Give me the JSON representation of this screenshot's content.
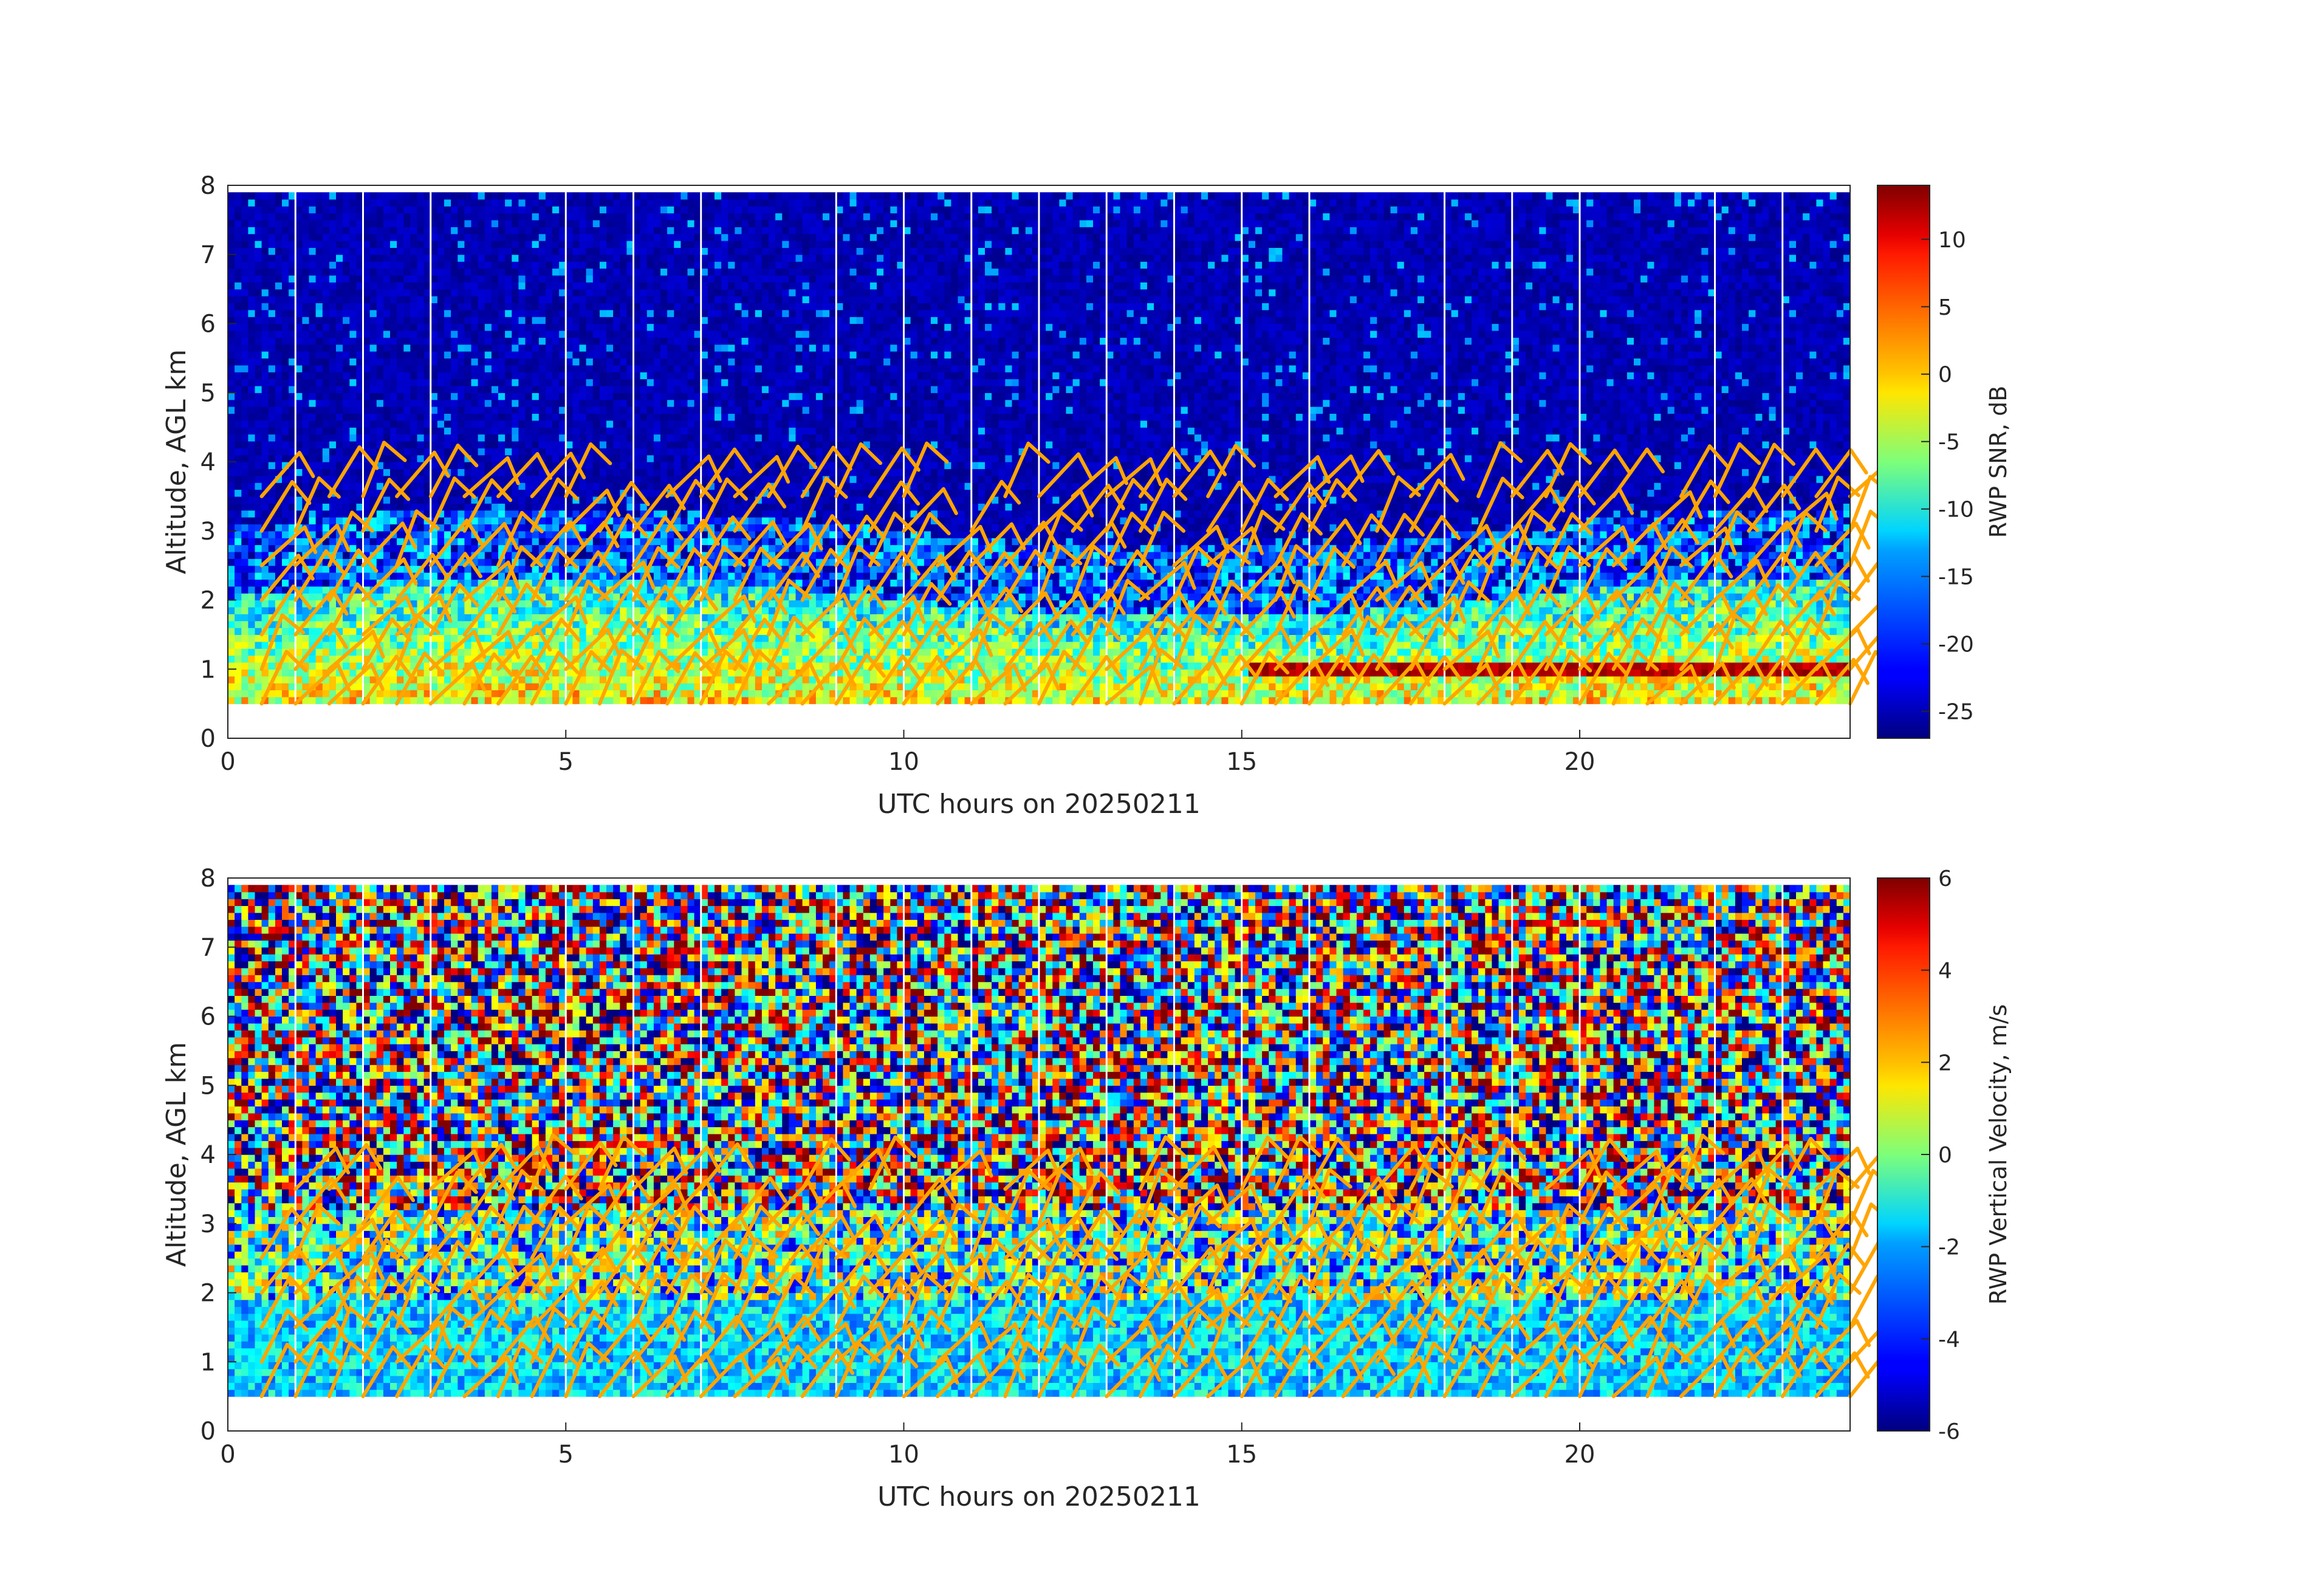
{
  "chart_data": [
    {
      "type": "heatmap",
      "xlabel": "UTC hours on 20250211",
      "ylabel": "Altitude, AGL km",
      "xlim": [
        0,
        24
      ],
      "ylim": [
        0,
        8
      ],
      "xticks": [
        0,
        5,
        10,
        15,
        20
      ],
      "yticks": [
        0,
        1,
        2,
        3,
        4,
        5,
        6,
        7,
        8
      ],
      "data_altitude_range_km": [
        0.5,
        7.9
      ],
      "gap_columns_utc_hours": [
        1,
        2,
        3,
        5,
        6,
        7,
        9,
        10,
        11,
        12,
        13,
        14,
        15,
        16,
        18,
        19,
        20,
        22,
        23
      ],
      "colorbar": {
        "label": "RWP SNR, dB",
        "range": [
          -27,
          14
        ],
        "ticks": [
          10,
          5,
          0,
          -5,
          -10,
          -15,
          -20,
          -25
        ],
        "colormap": "jet"
      },
      "wind_barbs": {
        "color": "#ffa500",
        "altitudes_km": [
          0.5,
          1.0,
          1.5,
          2.0,
          2.5,
          3.0,
          3.5
        ]
      }
    },
    {
      "type": "heatmap",
      "xlabel": "UTC hours on 20250211",
      "ylabel": "Altitude, AGL km",
      "xlim": [
        0,
        24
      ],
      "ylim": [
        0,
        8
      ],
      "xticks": [
        0,
        5,
        10,
        15,
        20
      ],
      "yticks": [
        0,
        1,
        2,
        3,
        4,
        5,
        6,
        7,
        8
      ],
      "data_altitude_range_km": [
        0.5,
        7.9
      ],
      "gap_columns_utc_hours": [
        1,
        2,
        3,
        5,
        6,
        7,
        9,
        10,
        11,
        12,
        13,
        14,
        15,
        16,
        18,
        19,
        20,
        22,
        23
      ],
      "colorbar": {
        "label": "RWP Vertical Velocity, m/s",
        "range": [
          -6,
          6
        ],
        "ticks": [
          6,
          4,
          2,
          0,
          -2,
          -4,
          -6
        ],
        "colormap": "jet"
      },
      "wind_barbs": {
        "color": "#ffa500",
        "altitudes_km": [
          0.5,
          1.0,
          1.5,
          2.0,
          2.5,
          3.0,
          3.5
        ]
      }
    }
  ]
}
